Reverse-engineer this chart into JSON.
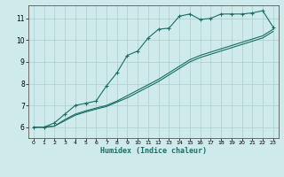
{
  "title": "",
  "xlabel": "Humidex (Indice chaleur)",
  "ylabel": "",
  "background_color": "#ceeaea",
  "grid_color": "#aacece",
  "line_color": "#1a6e64",
  "xlim": [
    -0.5,
    23.5
  ],
  "ylim": [
    5.5,
    11.6
  ],
  "yticks": [
    6,
    7,
    8,
    9,
    10,
    11
  ],
  "xticks": [
    0,
    1,
    2,
    3,
    4,
    5,
    6,
    7,
    8,
    9,
    10,
    11,
    12,
    13,
    14,
    15,
    16,
    17,
    18,
    19,
    20,
    21,
    22,
    23
  ],
  "series1_x": [
    0,
    1,
    2,
    3,
    4,
    5,
    6,
    7,
    8,
    9,
    10,
    11,
    12,
    13,
    14,
    15,
    16,
    17,
    18,
    19,
    20,
    21,
    22,
    23
  ],
  "series1_y": [
    6.0,
    6.0,
    6.2,
    6.6,
    7.0,
    7.1,
    7.2,
    7.9,
    8.5,
    9.3,
    9.5,
    10.1,
    10.5,
    10.55,
    11.1,
    11.2,
    10.95,
    11.0,
    11.2,
    11.2,
    11.2,
    11.25,
    11.35,
    10.6
  ],
  "series2_x": [
    0,
    1,
    2,
    3,
    4,
    5,
    6,
    7,
    8,
    9,
    10,
    11,
    12,
    13,
    14,
    15,
    16,
    17,
    18,
    19,
    20,
    21,
    22,
    23
  ],
  "series2_y": [
    6.0,
    6.0,
    6.05,
    6.35,
    6.6,
    6.75,
    6.88,
    7.0,
    7.2,
    7.45,
    7.7,
    7.95,
    8.2,
    8.5,
    8.8,
    9.1,
    9.3,
    9.45,
    9.6,
    9.75,
    9.9,
    10.05,
    10.2,
    10.5
  ],
  "series3_x": [
    0,
    1,
    2,
    3,
    4,
    5,
    6,
    7,
    8,
    9,
    10,
    11,
    12,
    13,
    14,
    15,
    16,
    17,
    18,
    19,
    20,
    21,
    22,
    23
  ],
  "series3_y": [
    6.0,
    6.0,
    6.05,
    6.3,
    6.55,
    6.7,
    6.83,
    6.95,
    7.15,
    7.35,
    7.6,
    7.85,
    8.1,
    8.4,
    8.7,
    9.0,
    9.2,
    9.35,
    9.5,
    9.65,
    9.8,
    9.95,
    10.1,
    10.4
  ]
}
